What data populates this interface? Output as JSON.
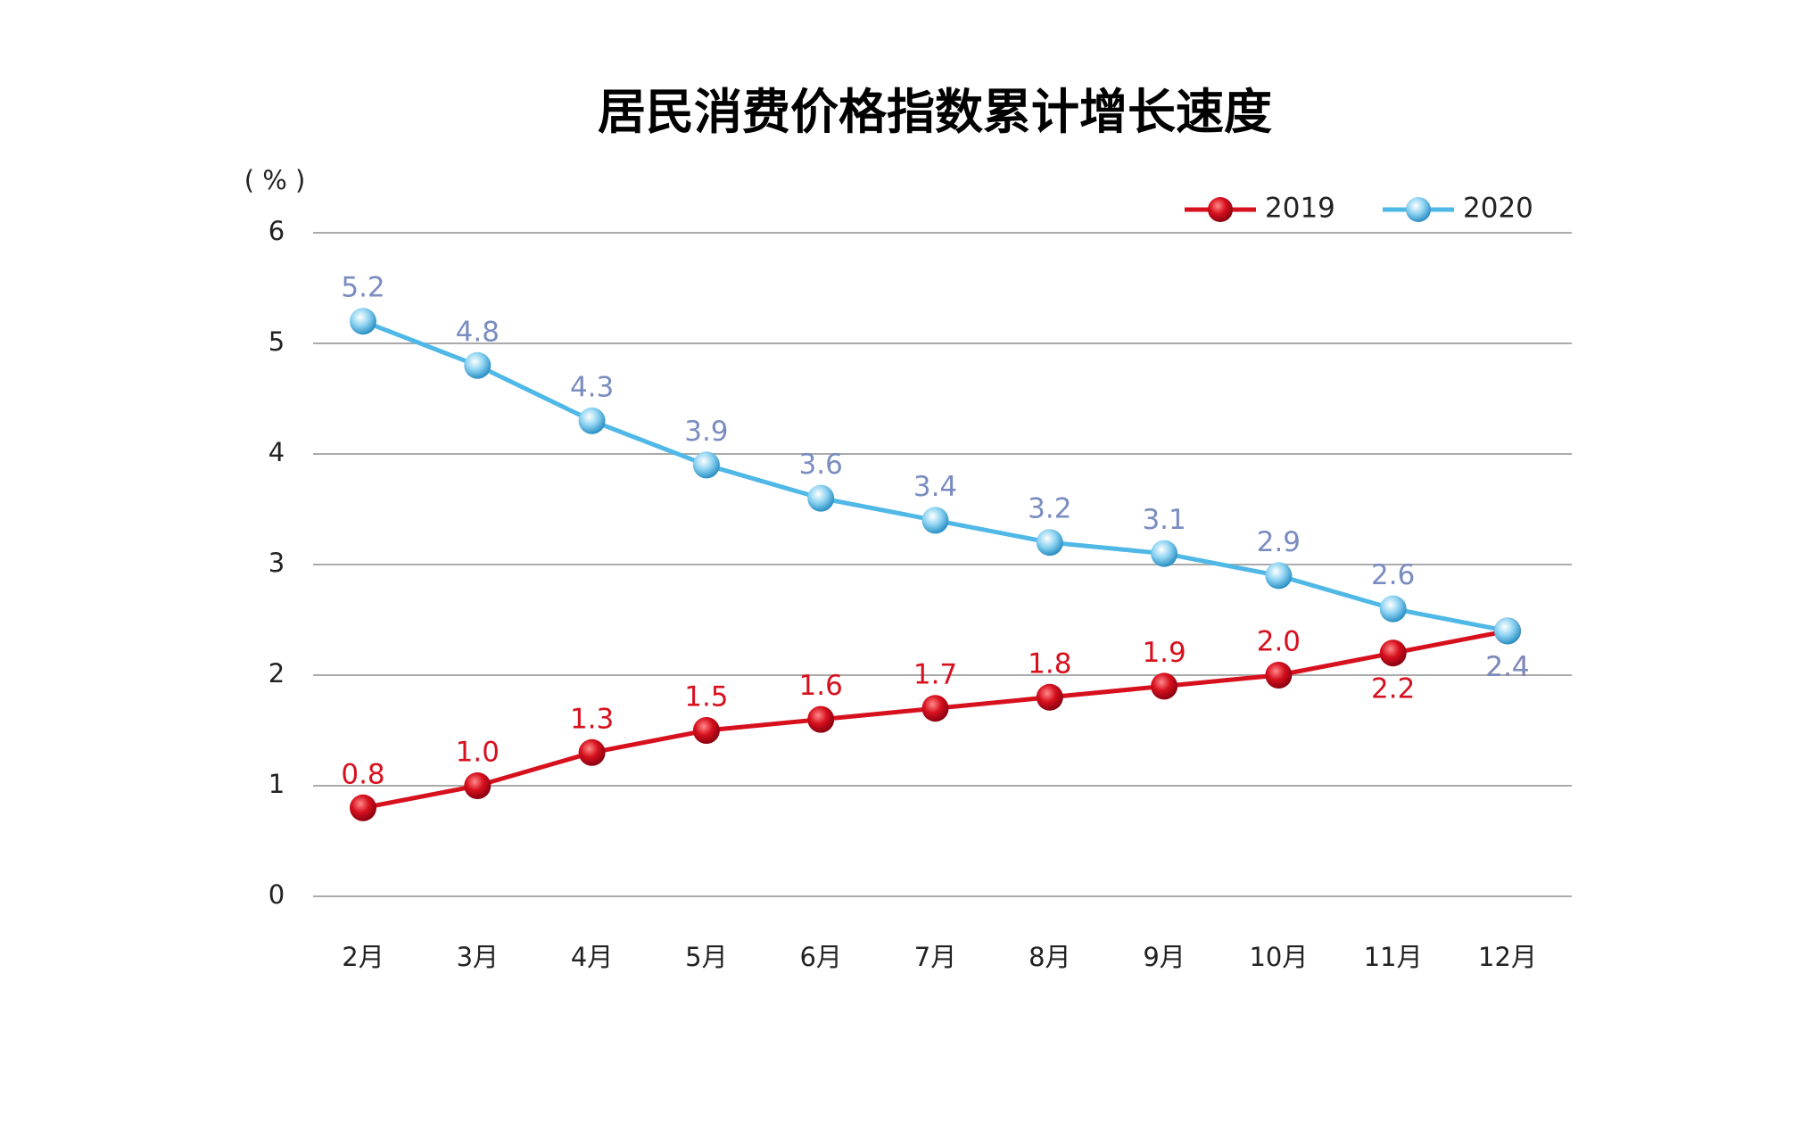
{
  "chart_data": {
    "type": "line",
    "title": "居民消费价格指数累计增长速度",
    "y_axis_label": "( % )",
    "categories": [
      "2月",
      "3月",
      "4月",
      "5月",
      "6月",
      "7月",
      "8月",
      "9月",
      "10月",
      "11月",
      "12月"
    ],
    "series": [
      {
        "name": "2019",
        "color": "#d7101e",
        "label_color": "#d7101e",
        "values": [
          0.8,
          1.0,
          1.3,
          1.5,
          1.6,
          1.7,
          1.8,
          1.9,
          2.0,
          2.2,
          2.4
        ],
        "value_labels": [
          "0.8",
          "1.0",
          "1.3",
          "1.5",
          "1.6",
          "1.7",
          "1.8",
          "1.9",
          "2.0",
          "2.2",
          "2.4"
        ]
      },
      {
        "name": "2020",
        "color": "#4fb8e6",
        "label_color": "#7a8cc0",
        "values": [
          5.2,
          4.8,
          4.3,
          3.9,
          3.6,
          3.4,
          3.2,
          3.1,
          2.9,
          2.6,
          2.4
        ],
        "value_labels": [
          "5.2",
          "4.8",
          "4.3",
          "3.9",
          "3.6",
          "3.4",
          "3.2",
          "3.1",
          "2.9",
          "2.6",
          "2.4"
        ]
      }
    ],
    "ylim": [
      0,
      6
    ],
    "yticks": [
      0,
      1,
      2,
      3,
      4,
      5,
      6
    ],
    "grid": true,
    "legend": "top-right"
  }
}
